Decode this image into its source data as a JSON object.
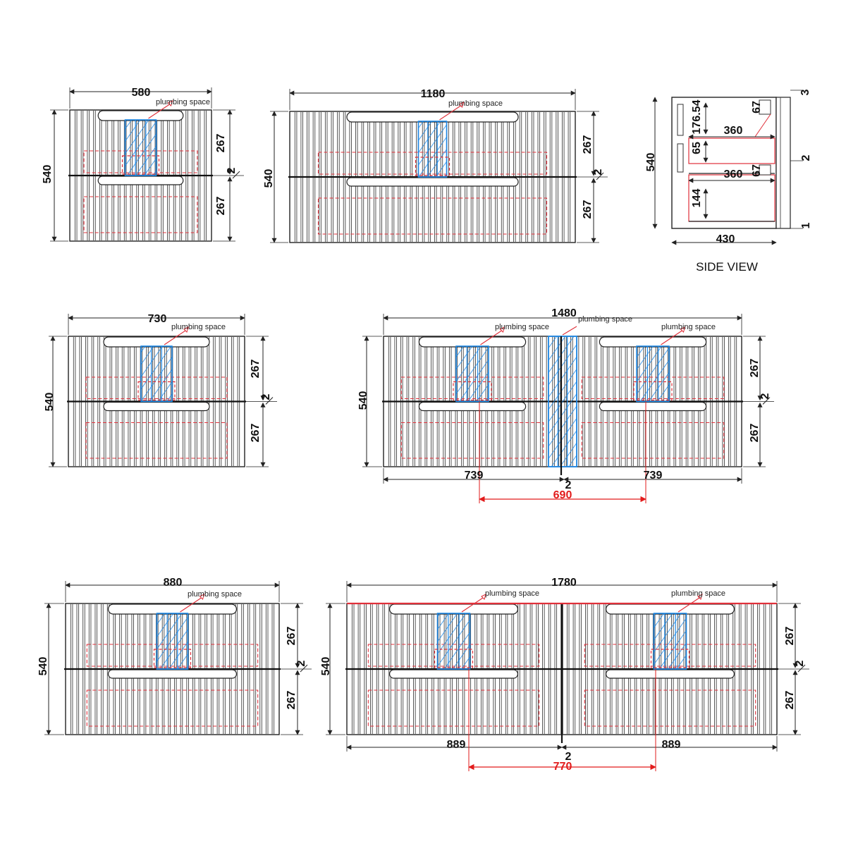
{
  "labels": {
    "plumbing": "plumbing space",
    "side_view": "SIDE VIEW"
  },
  "colors": {
    "outline": "#222222",
    "hidden_line": "#e0303a",
    "plumbing_zone": "#1e88e5",
    "dimension_red": "#e21b1b"
  },
  "v580": {
    "width": "580",
    "height": "540",
    "upper": "267",
    "lower": "267",
    "gap": "2"
  },
  "v1180": {
    "width": "1180",
    "height": "540",
    "upper": "267",
    "lower": "267",
    "gap": "2"
  },
  "side": {
    "top_gap": "3",
    "mid_gap": "2",
    "bottom_gap": "1",
    "height": "540",
    "h1": "176.54",
    "h2": "65",
    "h3": "144",
    "d1": "360",
    "d2": "360",
    "s1": "67",
    "s2": "67",
    "depth": "430"
  },
  "v730": {
    "width": "730",
    "height": "540",
    "upper": "267",
    "lower": "267",
    "gap": "2"
  },
  "v1480": {
    "width": "1480",
    "height": "540",
    "upper": "267",
    "lower": "267",
    "gap": "2",
    "left": "739",
    "right": "739",
    "center_gap": "2",
    "pipe": "690"
  },
  "v880": {
    "width": "880",
    "height": "540",
    "upper": "267",
    "lower": "267",
    "gap": "2"
  },
  "v1780": {
    "width": "1780",
    "height": "540",
    "upper": "267",
    "lower": "267",
    "gap": "2",
    "left": "889",
    "right": "889",
    "center_gap": "2",
    "pipe": "770"
  }
}
